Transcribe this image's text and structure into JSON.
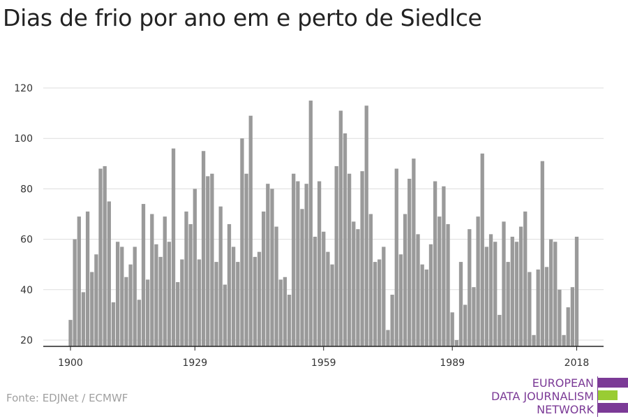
{
  "header": {
    "title": "Dias de frio por ano em e perto de Siedlce"
  },
  "footer": {
    "source": "Fonte: EDJNet / ECMWF",
    "logo_lines": [
      "EUROPEAN",
      "DATA JOURNALISM",
      "NETWORK"
    ]
  },
  "colors": {
    "bar": "#9a9a9a",
    "grid": "#dddddd",
    "axis": "#222222",
    "logo_purple": "#7b3a96",
    "logo_green": "#99cc33"
  },
  "chart_data": {
    "type": "bar",
    "title": "Dias de frio por ano em e perto de Siedlce",
    "xlabel": "",
    "ylabel": "",
    "x_start": 1900,
    "x_end": 2018,
    "x_ticks": [
      "1900",
      "1929",
      "1959",
      "1989",
      "2018"
    ],
    "y_ticks": [
      "20",
      "40",
      "60",
      "80",
      "100",
      "120"
    ],
    "ylim": [
      17,
      124
    ],
    "grid": true,
    "values": [
      28,
      60,
      69,
      39,
      71,
      47,
      54,
      88,
      89,
      75,
      35,
      59,
      57,
      45,
      50,
      57,
      36,
      74,
      44,
      70,
      58,
      53,
      69,
      59,
      96,
      43,
      52,
      71,
      66,
      80,
      52,
      95,
      85,
      86,
      51,
      73,
      42,
      66,
      57,
      51,
      100,
      86,
      109,
      53,
      55,
      71,
      82,
      80,
      65,
      44,
      45,
      38,
      86,
      83,
      72,
      82,
      115,
      61,
      83,
      63,
      55,
      50,
      89,
      111,
      102,
      86,
      67,
      64,
      87,
      113,
      70,
      51,
      52,
      57,
      24,
      38,
      88,
      54,
      70,
      84,
      92,
      62,
      50,
      48,
      58,
      83,
      69,
      81,
      66,
      31,
      20,
      51,
      34,
      64,
      41,
      69,
      94,
      57,
      62,
      59,
      30,
      67,
      51,
      61,
      59,
      65,
      71,
      47,
      22,
      48,
      91,
      49,
      60,
      59,
      40,
      22,
      33,
      41,
      61
    ]
  }
}
